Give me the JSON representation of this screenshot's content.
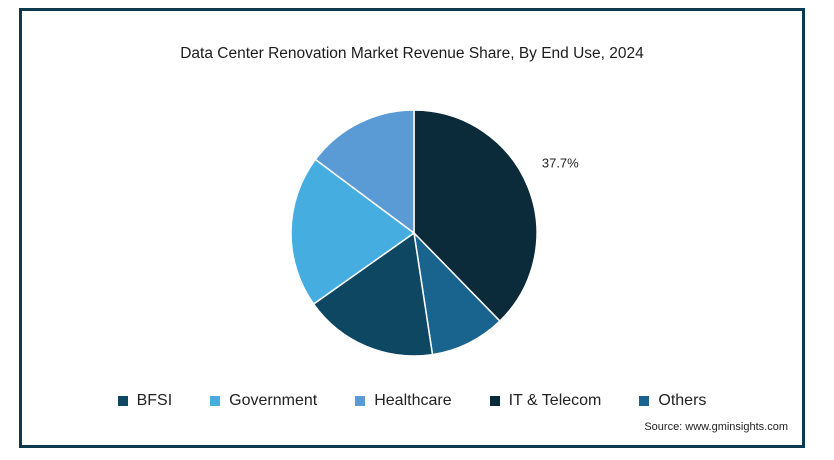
{
  "chart_data": {
    "type": "pie",
    "title": "Data Center Renovation Market Revenue Share, By End Use, 2024",
    "series": [
      {
        "name": "IT & Telecom",
        "value": 37.7,
        "color": "#0b2a3a"
      },
      {
        "name": "Others",
        "value": 9.9,
        "color": "#19638f"
      },
      {
        "name": "BFSI",
        "value": 17.6,
        "color": "#0e4761"
      },
      {
        "name": "Government",
        "value": 20.0,
        "color": "#46ade0"
      },
      {
        "name": "Healthcare",
        "value": 14.8,
        "color": "#5b9bd5"
      }
    ],
    "data_labels": [
      {
        "series": "IT & Telecom",
        "text": "37.7%"
      }
    ],
    "legend": {
      "placement": "bottom",
      "order": [
        "BFSI",
        "Government",
        "Healthcare",
        "IT & Telecom",
        "Others"
      ]
    }
  },
  "source_text": "Source: www.gminsights.com"
}
